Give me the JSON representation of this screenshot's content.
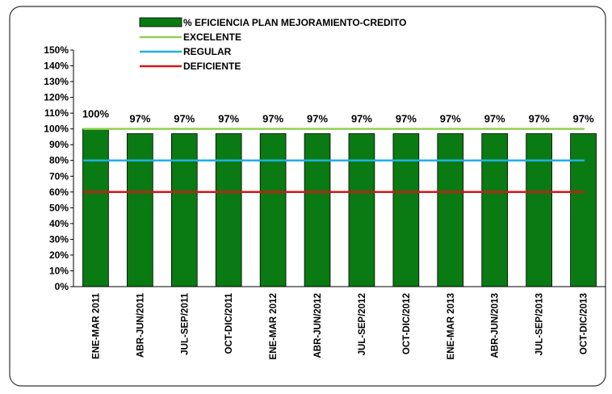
{
  "chart_data": {
    "type": "bar",
    "categories": [
      "ENE-MAR 2011",
      "ABR-JUN/2011",
      "JUL-SEP/2011",
      "OCT-DIC/2011",
      "ENE-MAR 2012",
      "ABR-JUN/2012",
      "JUL-SEP/2012",
      "OCT-DIC/2012",
      "ENE-MAR 2013",
      "ABR-JUN/2013",
      "JUL-SEP/2013",
      "OCT-DIC/2013"
    ],
    "series": [
      {
        "name": "% EFICIENCIA  PLAN MEJORAMIENTO-CREDITO",
        "color": "#0a7a12",
        "values": [
          100,
          97,
          97,
          97,
          97,
          97,
          97,
          97,
          97,
          97,
          97,
          97
        ],
        "value_labels": [
          "100%",
          "97%",
          "97%",
          "97%",
          "97%",
          "97%",
          "97%",
          "97%",
          "97%",
          "97%",
          "97%",
          "97%"
        ]
      }
    ],
    "reference_lines": [
      {
        "name": "EXCELENTE",
        "value": 100,
        "color": "#92d050"
      },
      {
        "name": "REGULAR",
        "value": 80,
        "color": "#1fb0e6"
      },
      {
        "name": "DEFICIENTE",
        "value": 60,
        "color": "#d01818"
      }
    ],
    "ylim": [
      0,
      150
    ],
    "yticks": [
      {
        "value": 0,
        "label": "0%"
      },
      {
        "value": 10,
        "label": "10%"
      },
      {
        "value": 20,
        "label": "20%"
      },
      {
        "value": 30,
        "label": "30%"
      },
      {
        "value": 40,
        "label": "40%"
      },
      {
        "value": 50,
        "label": "50%"
      },
      {
        "value": 60,
        "label": "60%"
      },
      {
        "value": 70,
        "label": "70%"
      },
      {
        "value": 80,
        "label": "80%"
      },
      {
        "value": 90,
        "label": "90%"
      },
      {
        "value": 100,
        "label": "100%"
      },
      {
        "value": 110,
        "label": "110%"
      },
      {
        "value": 120,
        "label": "120%"
      },
      {
        "value": 130,
        "label": "130%"
      },
      {
        "value": 140,
        "label": "140%"
      },
      {
        "value": 150,
        "label": "150%"
      }
    ]
  }
}
